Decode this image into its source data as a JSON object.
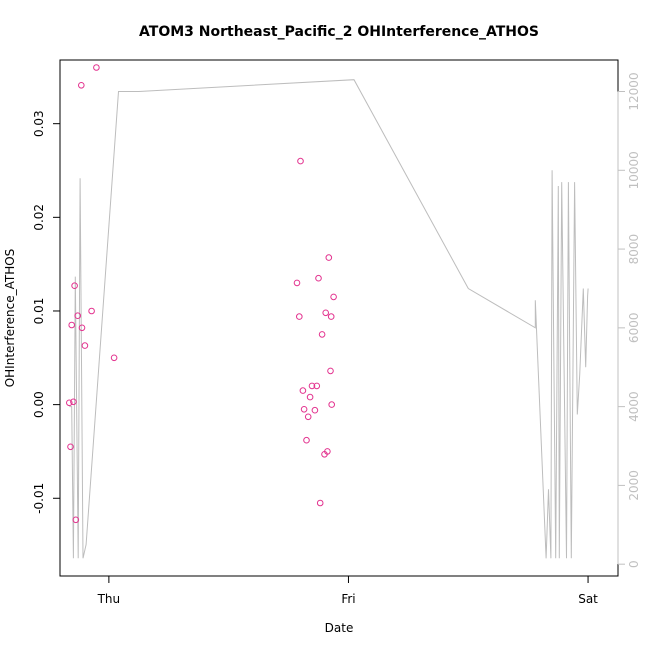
{
  "chart_data": {
    "type": "scatter",
    "title": "ATOM3 Northeast_Pacific_2 OHInterference_ATHOS",
    "xlabel": "Date",
    "ylabel": "OHInterference_ATHOS",
    "x_ticks": [
      {
        "label": "Thu",
        "x": 0.0
      },
      {
        "label": "Fri",
        "x": 1.0
      },
      {
        "label": "Sat",
        "x": 2.0
      }
    ],
    "xlim": [
      -0.204,
      2.125
    ],
    "left_axis": {
      "ylim": [
        -0.0183,
        0.0368
      ],
      "ticks": [
        -0.01,
        0.0,
        0.01,
        0.02,
        0.03
      ],
      "tick_labels": [
        "-0.01",
        "0.00",
        "0.01",
        "0.02",
        "0.03"
      ]
    },
    "right_axis": {
      "ylim": [
        -300,
        12800
      ],
      "ticks": [
        0,
        2000,
        4000,
        6000,
        8000,
        10000,
        12000
      ],
      "tick_labels": [
        "0",
        "2000",
        "4000",
        "6000",
        "8000",
        "10000",
        "12000"
      ],
      "color": "#c0c0c0"
    },
    "series": [
      {
        "role": "points",
        "axis": "left",
        "marker": "open-circle",
        "color": "#e3338f",
        "x": [
          -0.165,
          -0.16,
          -0.155,
          -0.148,
          -0.143,
          -0.138,
          -0.13,
          -0.115,
          -0.112,
          -0.1,
          -0.072,
          -0.052,
          0.022,
          0.785,
          0.795,
          0.8,
          0.81,
          0.815,
          0.825,
          0.832,
          0.84,
          0.848,
          0.86,
          0.868,
          0.875,
          0.882,
          0.89,
          0.9,
          0.905,
          0.912,
          0.918,
          0.925,
          0.928,
          0.93,
          0.938
        ],
        "y": [
          0.0002,
          -0.0045,
          0.0085,
          0.0003,
          0.0127,
          -0.0123,
          0.0095,
          0.0341,
          0.0082,
          0.0063,
          0.01,
          0.036,
          0.005,
          0.013,
          0.0094,
          0.026,
          0.0015,
          -0.0005,
          -0.0038,
          -0.0013,
          0.0008,
          0.002,
          -0.0006,
          0.002,
          0.0135,
          -0.0105,
          0.0075,
          -0.0053,
          0.0098,
          -0.005,
          0.0157,
          0.0036,
          0.0094,
          0.0,
          0.0115
        ]
      },
      {
        "role": "line",
        "axis": "right",
        "color": "#bdbdbd",
        "x": [
          -0.165,
          -0.155,
          -0.148,
          -0.14,
          -0.128,
          -0.12,
          -0.108,
          -0.095,
          0.04,
          0.125,
          1.023,
          1.5,
          1.78,
          1.78,
          1.825,
          1.835,
          1.845,
          1.85,
          1.865,
          1.876,
          1.88,
          1.89,
          1.91,
          1.918,
          1.93,
          1.944,
          1.955,
          1.965,
          1.98,
          1.99,
          1.998,
          2.0
        ],
        "y": [
          4000,
          4000,
          150,
          7300,
          150,
          9800,
          150,
          500,
          12000,
          12000,
          12300,
          7000,
          6000,
          6700,
          150,
          1900,
          150,
          10000,
          150,
          9600,
          150,
          9700,
          150,
          9700,
          150,
          9700,
          3800,
          4800,
          7000,
          5000,
          6800,
          7000
        ]
      }
    ]
  }
}
